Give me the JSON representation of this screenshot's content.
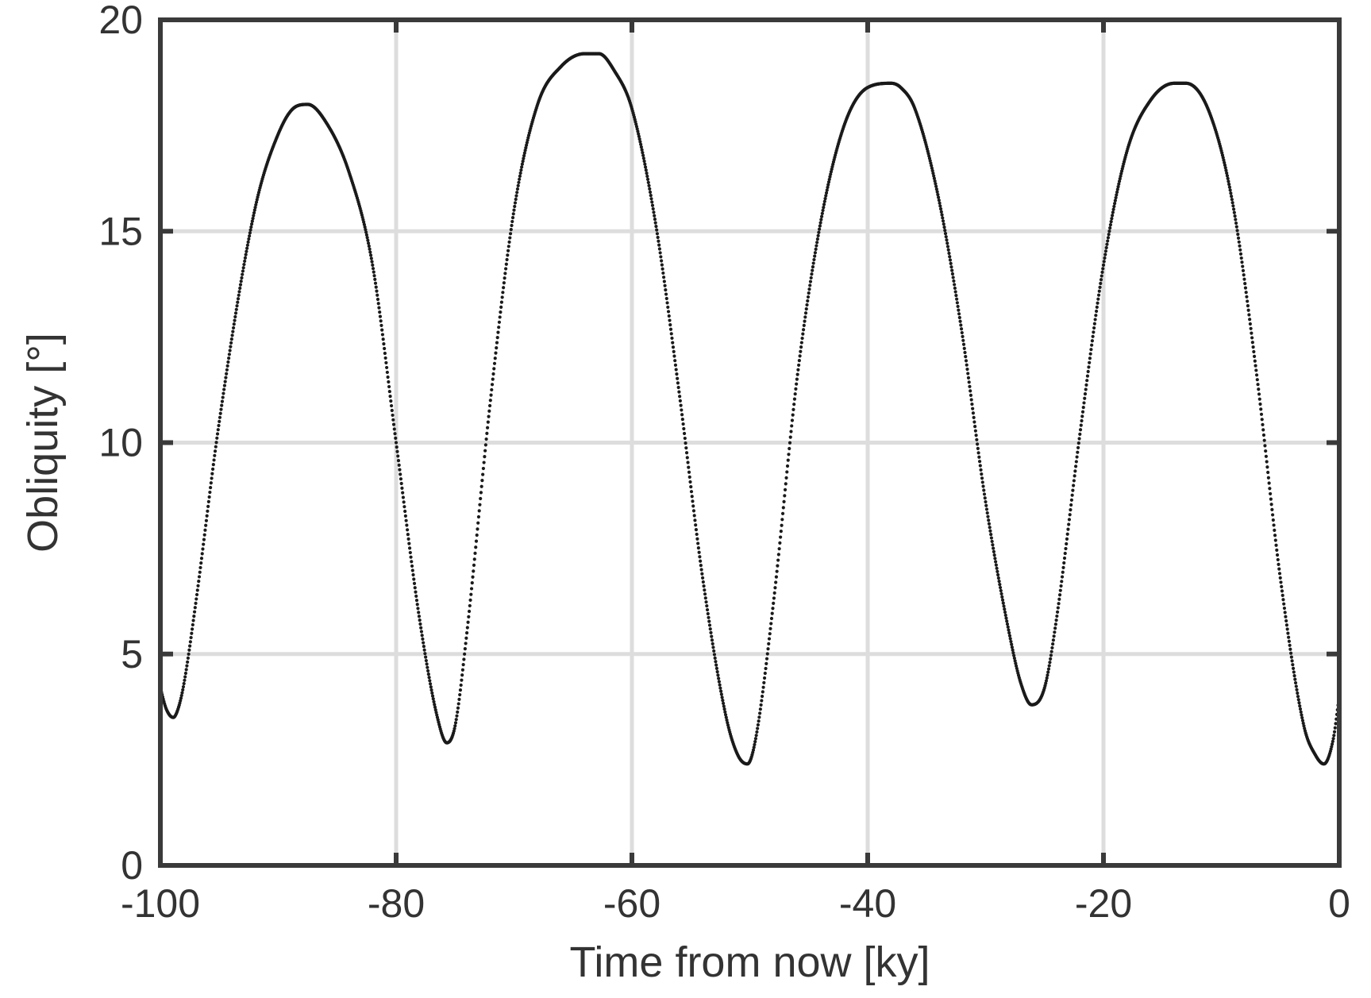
{
  "chart_data": {
    "type": "scatter",
    "title": "",
    "xlabel": "Time from now [ky]",
    "ylabel": "Obliquity [°]",
    "xlim": [
      -100,
      0
    ],
    "ylim": [
      0,
      20
    ],
    "grid": true,
    "xticks": [
      -100,
      -80,
      -60,
      -40,
      -20,
      0
    ],
    "yticks": [
      0,
      5,
      10,
      15,
      20
    ],
    "xtick_labels": [
      "-100",
      "-80",
      "-60",
      "-40",
      "-20",
      "0"
    ],
    "ytick_labels": [
      "0",
      "5",
      "10",
      "15",
      "20"
    ],
    "colors": {
      "points": "#1a1a1a",
      "grid": "#dddddd",
      "axes": "#3a3a3a"
    },
    "series": [
      {
        "marker": "dot",
        "x": [
          -100,
          -99.5,
          -98.9,
          -98.5,
          -98.0,
          -97.0,
          -95.0,
          -92.0,
          -90.0,
          -88.5,
          -87.5,
          -86.0,
          -84.0,
          -82.0,
          -80.0,
          -78.0,
          -76.5,
          -75.7,
          -75.0,
          -74.0,
          -72.0,
          -70.0,
          -68.0,
          -66.0,
          -64.0,
          -62.8,
          -61.5,
          -60.0,
          -58.0,
          -56.0,
          -54.0,
          -52.0,
          -51.0,
          -50.2,
          -49.5,
          -48.0,
          -46.0,
          -44.0,
          -42.0,
          -40.0,
          -38.0,
          -37.2,
          -36.0,
          -34.0,
          -32.0,
          -30.0,
          -28.0,
          -27.0,
          -26.1,
          -25.0,
          -24.0,
          -22.0,
          -20.0,
          -18.0,
          -16.0,
          -14.0,
          -13.0,
          -11.0,
          -9.0,
          -7.0,
          -5.0,
          -3.0,
          -2.0,
          -1.3,
          -0.5,
          0
        ],
        "y": [
          4.2,
          3.7,
          3.5,
          3.7,
          4.3,
          6.2,
          10.5,
          15.5,
          17.3,
          17.95,
          18.0,
          17.6,
          16.4,
          14.2,
          10.0,
          5.8,
          3.5,
          2.9,
          3.3,
          5.5,
          11.0,
          15.5,
          18.0,
          18.9,
          19.2,
          19.2,
          18.8,
          17.9,
          15.2,
          11.2,
          6.8,
          3.5,
          2.6,
          2.4,
          3.0,
          6.2,
          11.5,
          15.2,
          17.5,
          18.4,
          18.5,
          18.4,
          17.9,
          15.8,
          12.6,
          8.6,
          5.5,
          4.3,
          3.8,
          4.2,
          5.8,
          10.2,
          14.2,
          16.9,
          18.1,
          18.5,
          18.5,
          17.8,
          15.6,
          11.6,
          6.8,
          3.3,
          2.6,
          2.4,
          3.0,
          4.0
        ]
      }
    ]
  }
}
